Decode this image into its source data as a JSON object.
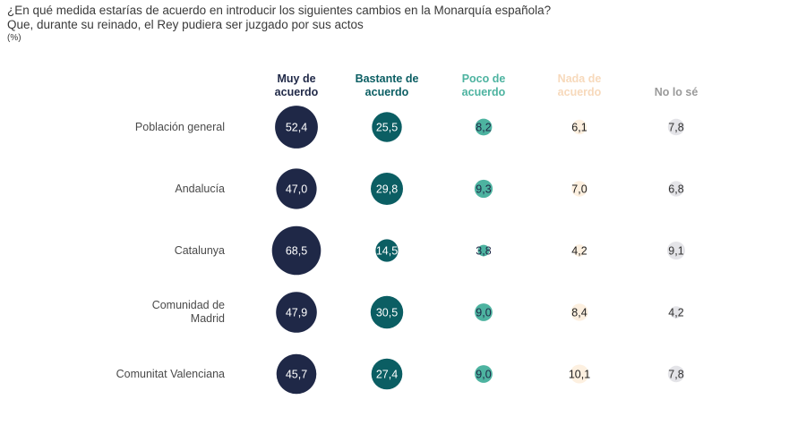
{
  "chart_data": {
    "type": "bubble-matrix",
    "title": "¿En qué medida estarías de acuerdo en introducir los siguientes cambios en la Monarquía española?",
    "subtitle": "Que, durante su reinado, el Rey pudiera ser juzgado por sus actos",
    "unit": "(%)",
    "columns": [
      {
        "label": [
          "Muy de",
          "acuerdo"
        ],
        "color": "#1f2847",
        "label_color": "#1f2847",
        "text_color": "#ffffff"
      },
      {
        "label": [
          "Bastante de",
          "acuerdo"
        ],
        "color": "#0b5e63",
        "label_color": "#0b5e63",
        "text_color": "#ffffff"
      },
      {
        "label": [
          "Poco de",
          "acuerdo"
        ],
        "color": "#4db3a0",
        "label_color": "#4db3a0",
        "text_color": "#1f2847"
      },
      {
        "label": [
          "Nada de",
          "acuerdo"
        ],
        "color": "#fdf0e0",
        "label_color": "#f7d9bb",
        "text_color": "#222222"
      },
      {
        "label": [
          "",
          "No lo sé"
        ],
        "color": "#e4e4e8",
        "label_color": "#9a9a9a",
        "text_color": "#333333"
      }
    ],
    "rows": [
      {
        "label": [
          "Población general"
        ],
        "values": [
          52.4,
          25.5,
          8.2,
          6.1,
          7.8
        ],
        "display": [
          "52,4",
          "25,5",
          "8,2",
          "6,1",
          "7,8"
        ]
      },
      {
        "label": [
          "Andalucía"
        ],
        "values": [
          47.0,
          29.8,
          9.3,
          7.0,
          6.8
        ],
        "display": [
          "47,0",
          "29,8",
          "9,3",
          "7,0",
          "6,8"
        ]
      },
      {
        "label": [
          "Catalunya"
        ],
        "values": [
          68.5,
          14.5,
          3.8,
          4.2,
          9.1
        ],
        "display": [
          "68,5",
          "14,5",
          "3,8",
          "4,2",
          "9,1"
        ]
      },
      {
        "label": [
          "Comunidad de",
          "Madrid"
        ],
        "values": [
          47.9,
          30.5,
          9.0,
          8.4,
          4.2
        ],
        "display": [
          "47,9",
          "30,5",
          "9,0",
          "8,4",
          "4,2"
        ]
      },
      {
        "label": [
          "Comunitat Valenciana"
        ],
        "values": [
          45.7,
          27.4,
          9.0,
          10.1,
          7.8
        ],
        "display": [
          "45,7",
          "27,4",
          "9,0",
          "10,1",
          "7,8"
        ]
      }
    ]
  }
}
